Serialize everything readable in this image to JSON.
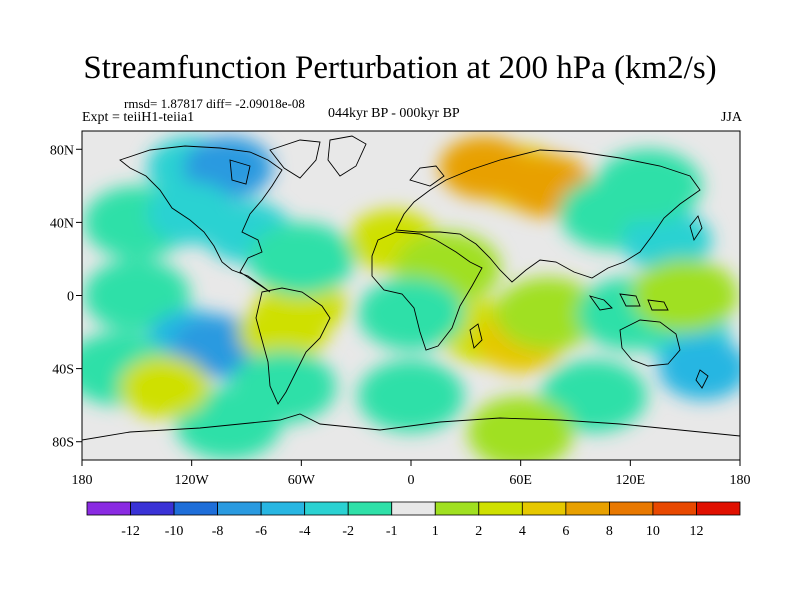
{
  "title": "Streamfunction Perturbation at 200 hPa (km2/s)",
  "stats": "rmsd= 1.87817 diff= -2.09018e-08",
  "experiment": "Expt = teiiH1-teiia1",
  "period": "044kyr BP - 000kyr BP",
  "season": "JJA",
  "lat_ticks": [
    {
      "label": "80N",
      "value": 80
    },
    {
      "label": "40N",
      "value": 40
    },
    {
      "label": "0",
      "value": 0
    },
    {
      "label": "40S",
      "value": -40
    },
    {
      "label": "80S",
      "value": -80
    }
  ],
  "lon_ticks": [
    {
      "label": "180",
      "value": -180
    },
    {
      "label": "120W",
      "value": -120
    },
    {
      "label": "60W",
      "value": -60
    },
    {
      "label": "0",
      "value": 0
    },
    {
      "label": "60E",
      "value": 60
    },
    {
      "label": "120E",
      "value": 120
    },
    {
      "label": "180",
      "value": 180
    }
  ],
  "colorbar": {
    "colors": [
      "#8a2be2",
      "#3a32d6",
      "#1e6ed9",
      "#2a9ae0",
      "#28b6e2",
      "#2bd2d2",
      "#2fe0a8",
      "#e8e8e8",
      "#a0e020",
      "#cfe000",
      "#e6c800",
      "#e8a000",
      "#e87800",
      "#e84800",
      "#e01000"
    ],
    "labels": [
      "-12",
      "-10",
      "-8",
      "-6",
      "-4",
      "-2",
      "-1",
      "1",
      "2",
      "4",
      "6",
      "8",
      "10",
      "12"
    ]
  },
  "field": [
    {
      "lon": -120,
      "lat": 70,
      "level": -2
    },
    {
      "lon": -100,
      "lat": 70,
      "level": -6
    },
    {
      "lon": -150,
      "lat": 40,
      "level": -1
    },
    {
      "lon": -120,
      "lat": 45,
      "level": -2
    },
    {
      "lon": -90,
      "lat": 35,
      "level": -2
    },
    {
      "lon": -150,
      "lat": 0,
      "level": -1
    },
    {
      "lon": -120,
      "lat": -25,
      "level": -4
    },
    {
      "lon": -105,
      "lat": -28,
      "level": -6
    },
    {
      "lon": -160,
      "lat": -40,
      "level": -1
    },
    {
      "lon": -100,
      "lat": -70,
      "level": -1
    },
    {
      "lon": -60,
      "lat": -5,
      "level": 2
    },
    {
      "lon": -70,
      "lat": -20,
      "level": 2
    },
    {
      "lon": -135,
      "lat": -50,
      "level": 2
    },
    {
      "lon": -70,
      "lat": -50,
      "level": -1
    },
    {
      "lon": -10,
      "lat": 30,
      "level": 2
    },
    {
      "lon": -60,
      "lat": 20,
      "level": -1
    },
    {
      "lon": 20,
      "lat": 15,
      "level": 1
    },
    {
      "lon": 60,
      "lat": 65,
      "level": 4
    },
    {
      "lon": 40,
      "lat": 70,
      "level": 6
    },
    {
      "lon": 75,
      "lat": 60,
      "level": 6
    },
    {
      "lon": 110,
      "lat": 45,
      "level": -1
    },
    {
      "lon": 140,
      "lat": 30,
      "level": -2
    },
    {
      "lon": 130,
      "lat": 60,
      "level": -1
    },
    {
      "lon": 40,
      "lat": -20,
      "level": 2
    },
    {
      "lon": 60,
      "lat": -25,
      "level": 4
    },
    {
      "lon": 75,
      "lat": -10,
      "level": 1
    },
    {
      "lon": 150,
      "lat": -20,
      "level": -2
    },
    {
      "lon": 160,
      "lat": -40,
      "level": -4
    },
    {
      "lon": 120,
      "lat": -10,
      "level": -1
    },
    {
      "lon": 0,
      "lat": -10,
      "level": -1
    },
    {
      "lon": 0,
      "lat": -55,
      "level": -1
    },
    {
      "lon": 100,
      "lat": -55,
      "level": -1
    },
    {
      "lon": 60,
      "lat": -75,
      "level": 1
    },
    {
      "lon": 150,
      "lat": 0,
      "level": 1
    }
  ]
}
